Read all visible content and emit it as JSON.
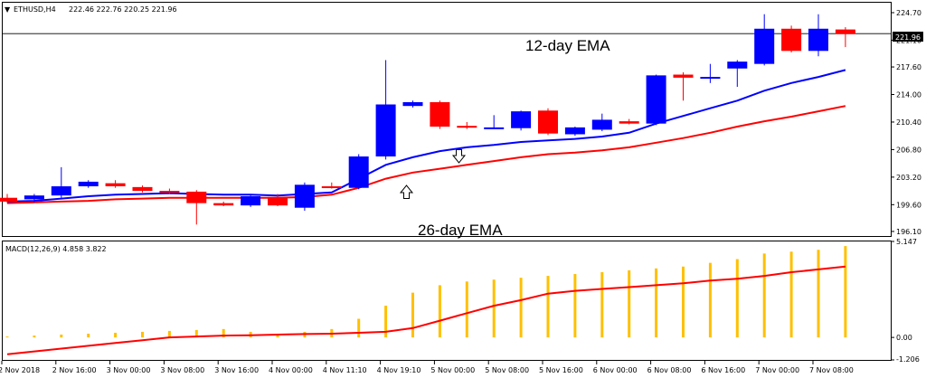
{
  "header": {
    "symbol": "ETHUSD,H4",
    "ohlc": "222.46 222.76 220.25 221.96"
  },
  "macd_header": "MACD(12,26,9) 4.858 3.822",
  "current_price": "221.96",
  "annotations": {
    "ema12": "12-day EMA",
    "ema26": "26-day EMA"
  },
  "colors": {
    "bull": "#0000ff",
    "bear": "#ff0000",
    "ema12": "#0000ff",
    "ema26": "#ff0000",
    "macd_hist": "#ffc000",
    "macd_signal": "#ff0000",
    "price_line": "#000000"
  },
  "chart_data": [
    {
      "type": "candlestick",
      "title": "ETHUSD,H4",
      "ylim": [
        195.5,
        226.0
      ],
      "y_ticks": [
        "224.70",
        "221.10",
        "217.60",
        "214.00",
        "210.40",
        "206.80",
        "203.20",
        "199.60",
        "196.10"
      ],
      "x_tick_labels": [
        "2 Nov 2018",
        "2 Nov 16:00",
        "3 Nov 00:00",
        "3 Nov 08:00",
        "3 Nov 16:00",
        "4 Nov 00:00",
        "4 Nov 11:10",
        "4 Nov 19:10",
        "5 Nov 00:00",
        "5 Nov 08:00",
        "5 Nov 16:00",
        "6 Nov 00:00",
        "6 Nov 08:00",
        "6 Nov 16:00",
        "7 Nov 00:00",
        "7 Nov 08:00"
      ],
      "candles": [
        {
          "o": 200.5,
          "h": 201.0,
          "l": 199.8,
          "c": 200.0
        },
        {
          "o": 200.3,
          "h": 201.0,
          "l": 199.9,
          "c": 200.8
        },
        {
          "o": 200.8,
          "h": 204.5,
          "l": 200.5,
          "c": 202.0
        },
        {
          "o": 202.0,
          "h": 202.8,
          "l": 201.8,
          "c": 202.6
        },
        {
          "o": 202.4,
          "h": 202.8,
          "l": 201.8,
          "c": 202.0
        },
        {
          "o": 201.9,
          "h": 202.1,
          "l": 201.2,
          "c": 201.4
        },
        {
          "o": 201.4,
          "h": 201.7,
          "l": 201.0,
          "c": 201.2
        },
        {
          "o": 201.3,
          "h": 201.5,
          "l": 197.0,
          "c": 199.8
        },
        {
          "o": 199.8,
          "h": 200.0,
          "l": 199.4,
          "c": 199.5
        },
        {
          "o": 199.5,
          "h": 200.8,
          "l": 199.3,
          "c": 200.7
        },
        {
          "o": 200.6,
          "h": 201.0,
          "l": 199.4,
          "c": 199.5
        },
        {
          "o": 199.2,
          "h": 202.5,
          "l": 198.8,
          "c": 202.2
        },
        {
          "o": 202.0,
          "h": 202.5,
          "l": 201.7,
          "c": 201.8
        },
        {
          "o": 201.8,
          "h": 206.2,
          "l": 201.6,
          "c": 205.9
        },
        {
          "o": 205.9,
          "h": 218.5,
          "l": 205.5,
          "c": 212.7
        },
        {
          "o": 212.5,
          "h": 213.2,
          "l": 212.3,
          "c": 213.0
        },
        {
          "o": 213.0,
          "h": 213.2,
          "l": 209.5,
          "c": 209.8
        },
        {
          "o": 209.9,
          "h": 210.4,
          "l": 209.5,
          "c": 209.7
        },
        {
          "o": 209.6,
          "h": 211.3,
          "l": 209.5,
          "c": 209.7
        },
        {
          "o": 209.6,
          "h": 211.9,
          "l": 209.3,
          "c": 211.8
        },
        {
          "o": 211.9,
          "h": 212.2,
          "l": 208.7,
          "c": 208.9
        },
        {
          "o": 208.8,
          "h": 209.8,
          "l": 208.6,
          "c": 209.7
        },
        {
          "o": 209.4,
          "h": 211.5,
          "l": 209.2,
          "c": 210.7
        },
        {
          "o": 210.5,
          "h": 210.8,
          "l": 210.1,
          "c": 210.2
        },
        {
          "o": 210.2,
          "h": 216.6,
          "l": 210.0,
          "c": 216.5
        },
        {
          "o": 216.6,
          "h": 216.9,
          "l": 213.2,
          "c": 216.2
        },
        {
          "o": 216.2,
          "h": 218.0,
          "l": 215.5,
          "c": 216.3
        },
        {
          "o": 217.4,
          "h": 218.5,
          "l": 215.0,
          "c": 218.3
        },
        {
          "o": 218.0,
          "h": 224.5,
          "l": 217.8,
          "c": 222.6
        },
        {
          "o": 222.6,
          "h": 223.0,
          "l": 219.5,
          "c": 219.7
        },
        {
          "o": 219.7,
          "h": 224.5,
          "l": 219.0,
          "c": 222.6
        },
        {
          "o": 222.5,
          "h": 222.8,
          "l": 220.2,
          "c": 221.9
        }
      ],
      "series": [
        {
          "name": "12-day EMA",
          "values": [
            200.0,
            200.1,
            200.4,
            200.7,
            200.9,
            201.0,
            201.1,
            201.0,
            200.9,
            200.9,
            200.8,
            201.0,
            201.2,
            203.0,
            204.8,
            205.8,
            206.6,
            207.1,
            207.4,
            207.8,
            208.0,
            208.2,
            208.5,
            209.0,
            210.2,
            211.2,
            212.2,
            213.2,
            214.5,
            215.5,
            216.3,
            217.2
          ]
        },
        {
          "name": "26-day EMA",
          "values": [
            199.8,
            199.9,
            200.0,
            200.1,
            200.3,
            200.4,
            200.5,
            200.5,
            200.5,
            200.5,
            200.5,
            200.6,
            200.9,
            201.8,
            203.0,
            203.8,
            204.3,
            204.8,
            205.3,
            205.8,
            206.2,
            206.4,
            206.7,
            207.1,
            207.7,
            208.3,
            209.0,
            209.8,
            210.5,
            211.1,
            211.8,
            212.5
          ]
        }
      ]
    },
    {
      "type": "bar",
      "title": "MACD(12,26,9) 4.858 3.822",
      "ylim": [
        -1.206,
        5.147
      ],
      "y_ticks": [
        "5.147",
        "0.00",
        "-1.206"
      ],
      "series": [
        {
          "name": "MACD",
          "values": [
            0.05,
            0.1,
            0.15,
            0.2,
            0.25,
            0.3,
            0.35,
            0.4,
            0.45,
            0.3,
            0.2,
            0.3,
            0.45,
            1.0,
            1.7,
            2.4,
            2.8,
            3.0,
            3.1,
            3.2,
            3.3,
            3.4,
            3.5,
            3.6,
            3.7,
            3.8,
            4.0,
            4.2,
            4.5,
            4.6,
            4.7,
            4.9
          ]
        },
        {
          "name": "Signal",
          "values": [
            -0.9,
            -0.75,
            -0.6,
            -0.45,
            -0.3,
            -0.15,
            0.0,
            0.05,
            0.1,
            0.12,
            0.15,
            0.18,
            0.2,
            0.25,
            0.3,
            0.5,
            0.9,
            1.3,
            1.7,
            2.0,
            2.35,
            2.5,
            2.6,
            2.7,
            2.8,
            2.9,
            3.05,
            3.15,
            3.3,
            3.5,
            3.65,
            3.8
          ]
        }
      ]
    }
  ]
}
